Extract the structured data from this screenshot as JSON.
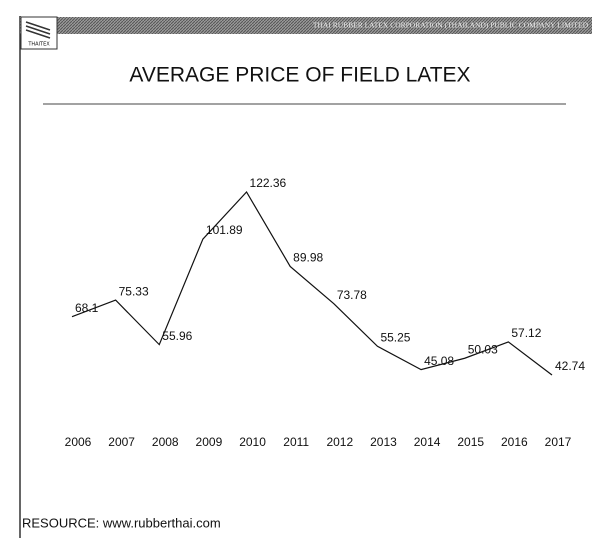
{
  "header": {
    "company": "THAI RUBBER LATEX CORPORATION (THAILAND) PUBLIC COMPANY LIMITED",
    "logo": "THAITEX"
  },
  "chart_data": {
    "type": "line",
    "title": "AVERAGE PRICE OF FIELD LATEX",
    "categories": [
      "2006",
      "2007",
      "2008",
      "2009",
      "2010",
      "2011",
      "2012",
      "2013",
      "2014",
      "2015",
      "2016",
      "2017"
    ],
    "values": [
      68.1,
      75.33,
      55.96,
      101.89,
      122.36,
      89.98,
      73.78,
      55.25,
      45.08,
      50.03,
      57.12,
      42.74
    ],
    "color": "#111111"
  },
  "footer": "RESOURCE: www.rubberthai.com"
}
